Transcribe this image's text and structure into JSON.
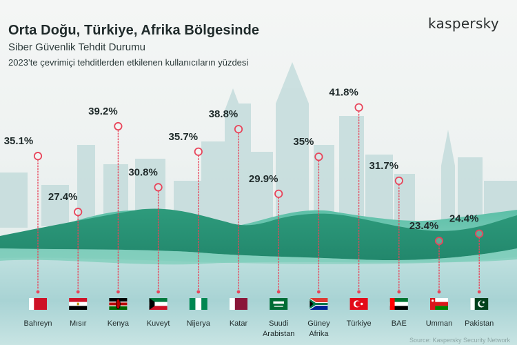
{
  "header": {
    "title": "Orta Doğu, Türkiye, Afrika Bölgesinde",
    "subtitle": "Siber Güvenlik Tehdit Durumu",
    "description": "2023’te çevrimiçi tehditlerden etkilenen kullanıcıların yüzdesi"
  },
  "brand": "kaspersky",
  "source": "Source: Kaspersky Security Network",
  "colors": {
    "accent": "#e8445a",
    "hill_dark": "#2a9577",
    "hill_light": "#6fc9b4",
    "sky_top": "#f3f6f5",
    "water": "#a9d3d4"
  },
  "chart_data": {
    "type": "scatter",
    "title": "Orta Doğu, Türkiye, Afrika Bölgesinde",
    "subtitle": "Siber Güvenlik Tehdit Durumu",
    "description": "2023’te çevrimiçi tehditlerden etkilenen kullanıcıların yüzdesi",
    "ylim": [
      20,
      45
    ],
    "grid": false,
    "legend": "none",
    "categories": [
      "Bahreyn",
      "Mısır",
      "Kenya",
      "Kuveyt",
      "Nijerya",
      "Katar",
      "Suudi Arabistan",
      "Güney Afrika",
      "Türkiye",
      "BAE",
      "Umman",
      "Pakistan"
    ],
    "values": [
      35.1,
      27.4,
      39.2,
      30.8,
      35.7,
      38.8,
      29.9,
      35,
      41.8,
      31.7,
      23.4,
      24.4
    ],
    "labels": [
      "35.1%",
      "27.4%",
      "39.2%",
      "30.8%",
      "35.7%",
      "38.8%",
      "29.9%",
      "35%",
      "41.8%",
      "31.7%",
      "23.4%",
      "24.4%"
    ],
    "flag_icons": [
      "bahrain-flag-icon",
      "egypt-flag-icon",
      "kenya-flag-icon",
      "kuwait-flag-icon",
      "nigeria-flag-icon",
      "qatar-flag-icon",
      "saudi-arabia-flag-icon",
      "south-africa-flag-icon",
      "turkey-flag-icon",
      "uae-flag-icon",
      "oman-flag-icon",
      "pakistan-flag-icon"
    ]
  }
}
